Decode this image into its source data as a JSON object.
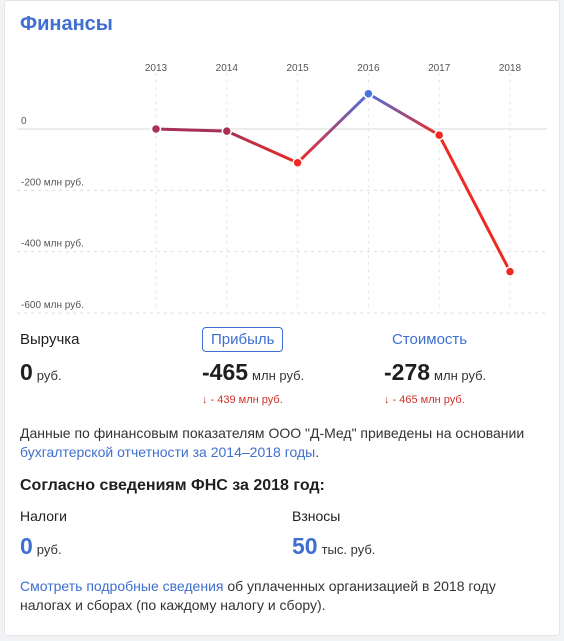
{
  "title": "Финансы",
  "chart_data": {
    "type": "line",
    "x": [
      "2013",
      "2014",
      "2015",
      "2016",
      "2017",
      "2018"
    ],
    "series": [
      {
        "values": [
          0,
          -7,
          -110,
          115,
          -20,
          -465
        ]
      }
    ],
    "y_ticks": [
      0,
      -200,
      -400,
      -600
    ],
    "y_tick_labels": [
      "0",
      "-200 млн руб.",
      "-400 млн руб.",
      "-600 млн руб."
    ],
    "ylim": [
      -600,
      135
    ],
    "grid": true,
    "colors": {
      "up": "#4a72e0",
      "down": "#ee2a22",
      "point": "#a83055"
    }
  },
  "metrics": [
    {
      "label": "Выручка",
      "value": "0",
      "unit": "руб.",
      "delta": ""
    },
    {
      "label": "Прибыль",
      "value": "-465",
      "unit": "млн руб.",
      "delta": "↓ - 439 млн руб."
    },
    {
      "label": "Стоимость",
      "value": "-278",
      "unit": "млн руб.",
      "delta": "↓ - 465 млн руб."
    }
  ],
  "note": {
    "text": "Данные по финансовым показателям ООО \"Д-Мед\" приведены на основании",
    "link": "бухгалтерской отчетности за 2014–2018 годы",
    "end": "."
  },
  "fns": {
    "heading": "Согласно сведениям ФНС за 2018 год:",
    "items": [
      {
        "label": "Налоги",
        "value": "0",
        "unit": "руб."
      },
      {
        "label": "Взносы",
        "value": "50",
        "unit": "тыс. руб."
      }
    ]
  },
  "footer": {
    "link": "Смотреть подробные сведения",
    "text": "об уплаченных организацией в 2018 году налогах и сборах (по каждому налогу и сбору)."
  }
}
